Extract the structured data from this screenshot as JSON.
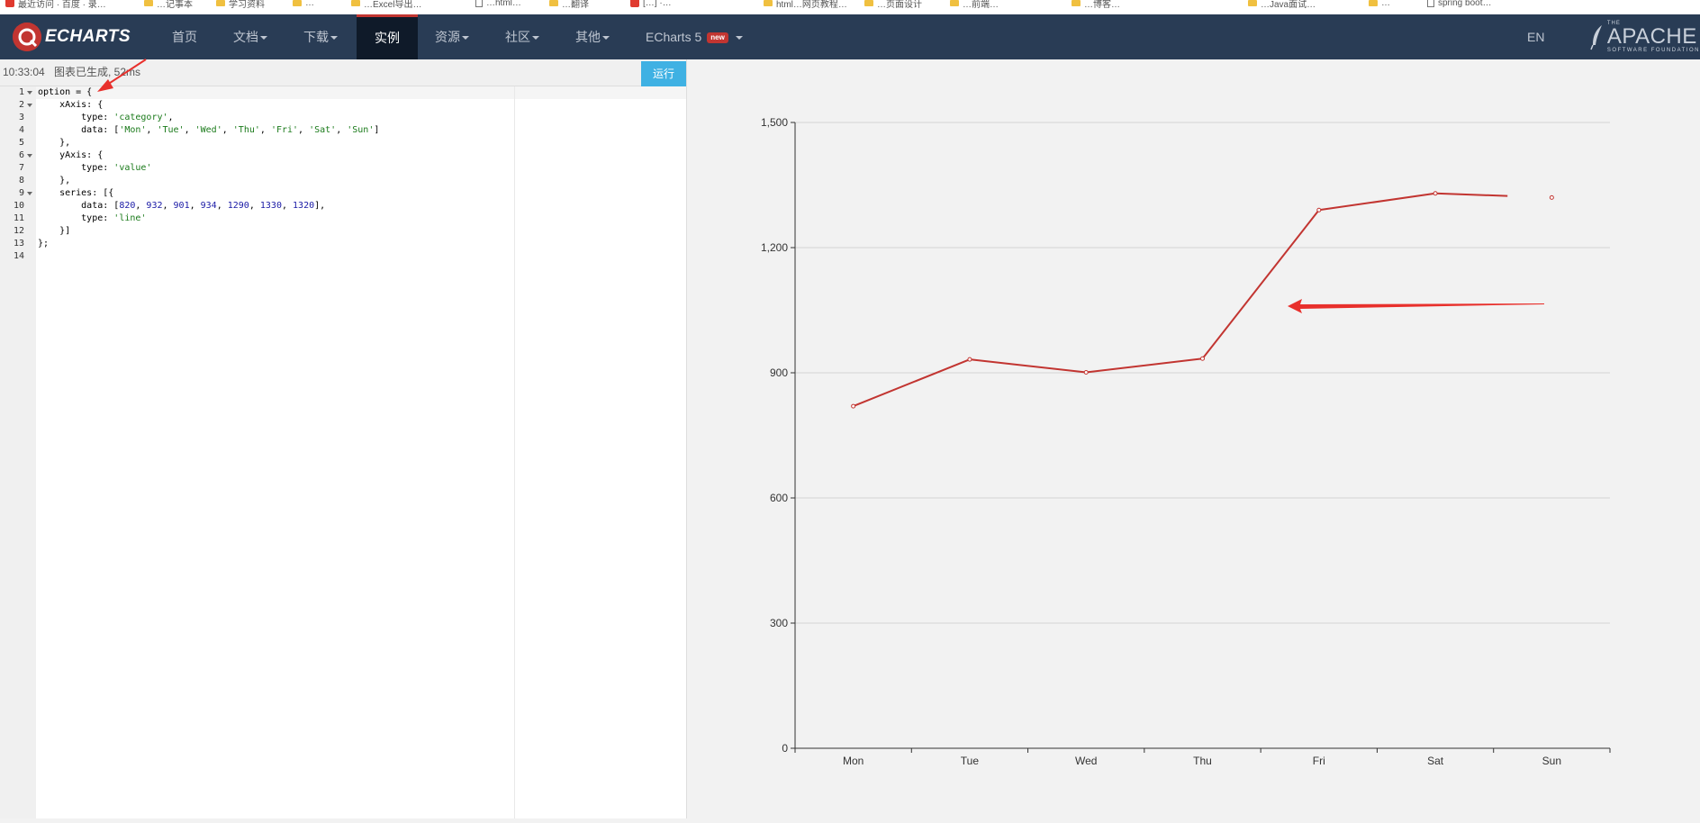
{
  "bookmarks": [
    {
      "label": "最近访问 · 百度 · 录…",
      "kind": "red"
    },
    {
      "label": "…记事本",
      "kind": "fold"
    },
    {
      "label": "学习资料",
      "kind": "fold"
    },
    {
      "label": "…",
      "kind": "fold"
    },
    {
      "label": "…Excel导出…",
      "kind": "fold"
    },
    {
      "label": "…html…",
      "kind": "file"
    },
    {
      "label": "…翻译",
      "kind": "fold"
    },
    {
      "label": "[…] ·…",
      "kind": "red"
    },
    {
      "label": "html…网页教程…",
      "kind": "fold"
    },
    {
      "label": "…页面设计",
      "kind": "fold"
    },
    {
      "label": "…前端…",
      "kind": "fold"
    },
    {
      "label": "…博客…",
      "kind": "fold"
    },
    {
      "label": "…Java面试…",
      "kind": "fold"
    },
    {
      "label": "…",
      "kind": "fold"
    },
    {
      "label": "spring boot…",
      "kind": "file"
    }
  ],
  "nav": {
    "logo_text": "ECHARTS",
    "items": [
      "首页",
      "文档",
      "下载",
      "实例",
      "资源",
      "社区",
      "其他"
    ],
    "echarts5": "ECharts 5",
    "new_badge": "new",
    "lang": "EN",
    "apache_big": "APACHE",
    "apache_small": "SOFTWARE FOUNDATION",
    "apache_the": "THE"
  },
  "editor": {
    "time": "10:33:04",
    "message": "图表已生成, 52ms",
    "run_label": "运行",
    "line_numbers": [
      "1",
      "2",
      "3",
      "4",
      "5",
      "6",
      "7",
      "8",
      "9",
      "10",
      "11",
      "12",
      "13",
      "14"
    ],
    "fold_lines": [
      1,
      2,
      6,
      9
    ],
    "code": [
      [
        [
          "k",
          "option = {"
        ]
      ],
      [
        [
          "k",
          "    xAxis: {"
        ]
      ],
      [
        [
          "k",
          "        type: "
        ],
        [
          "s",
          "'category'"
        ],
        [
          "k",
          ","
        ]
      ],
      [
        [
          "k",
          "        data: ["
        ],
        [
          "s",
          "'Mon'"
        ],
        [
          "k",
          ", "
        ],
        [
          "s",
          "'Tue'"
        ],
        [
          "k",
          ", "
        ],
        [
          "s",
          "'Wed'"
        ],
        [
          "k",
          ", "
        ],
        [
          "s",
          "'Thu'"
        ],
        [
          "k",
          ", "
        ],
        [
          "s",
          "'Fri'"
        ],
        [
          "k",
          ", "
        ],
        [
          "s",
          "'Sat'"
        ],
        [
          "k",
          ", "
        ],
        [
          "s",
          "'Sun'"
        ],
        [
          "k",
          "]"
        ]
      ],
      [
        [
          "k",
          "    },"
        ]
      ],
      [
        [
          "k",
          "    yAxis: {"
        ]
      ],
      [
        [
          "k",
          "        type: "
        ],
        [
          "s",
          "'value'"
        ]
      ],
      [
        [
          "k",
          "    },"
        ]
      ],
      [
        [
          "k",
          "    series: [{"
        ]
      ],
      [
        [
          "k",
          "        data: ["
        ],
        [
          "n",
          "820"
        ],
        [
          "k",
          ", "
        ],
        [
          "n",
          "932"
        ],
        [
          "k",
          ", "
        ],
        [
          "n",
          "901"
        ],
        [
          "k",
          ", "
        ],
        [
          "n",
          "934"
        ],
        [
          "k",
          ", "
        ],
        [
          "n",
          "1290"
        ],
        [
          "k",
          ", "
        ],
        [
          "n",
          "1330"
        ],
        [
          "k",
          ", "
        ],
        [
          "n",
          "1320"
        ],
        [
          "k",
          "],"
        ]
      ],
      [
        [
          "k",
          "        type: "
        ],
        [
          "s",
          "'line'"
        ]
      ],
      [
        [
          "k",
          "    }]"
        ]
      ],
      [
        [
          "k",
          "};"
        ]
      ],
      [
        [
          "k",
          ""
        ]
      ]
    ]
  },
  "colors": {
    "line": "#c23531",
    "annotation": "#e8302c",
    "axis": "#333333",
    "grid": "#d4d4d4"
  },
  "chart_data": {
    "type": "line",
    "categories": [
      "Mon",
      "Tue",
      "Wed",
      "Thu",
      "Fri",
      "Sat",
      "Sun"
    ],
    "series": [
      {
        "values": [
          820,
          932,
          901,
          934,
          1290,
          1330,
          1320
        ]
      }
    ],
    "ylim": [
      0,
      1500
    ],
    "yticks": [
      "0",
      "300",
      "600",
      "900",
      "1,200",
      "1,500"
    ],
    "ytick_values": [
      0,
      300,
      600,
      900,
      1200,
      1500
    ],
    "grid": true,
    "legend": "none"
  }
}
